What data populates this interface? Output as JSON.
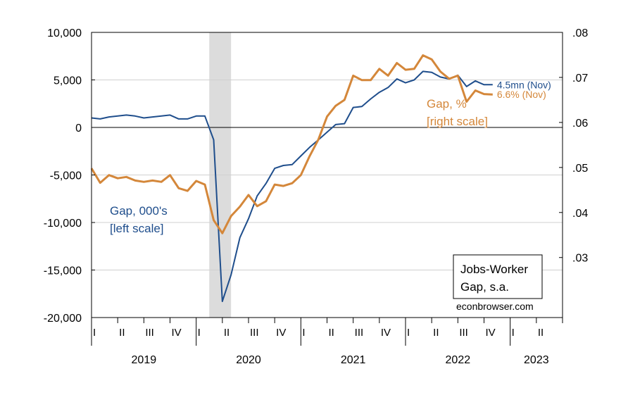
{
  "chart_data": {
    "type": "line",
    "title": "",
    "colors": {
      "gap_level": "#1f4e8c",
      "gap_pct": "#d4873a",
      "recession": "#dcdcdc",
      "grid": "#d0d0d0"
    },
    "left_axis": {
      "ylim": [
        -20000,
        10000
      ],
      "ticks": [
        10000,
        5000,
        0,
        -5000,
        -10000,
        -15000,
        -20000
      ],
      "tick_labels": [
        "10,000",
        "5,000",
        "0",
        "-5,000",
        "-10,000",
        "-15,000",
        "-20,000"
      ]
    },
    "right_axis": {
      "ylim": [
        0.016667,
        0.08
      ],
      "ticks": [
        0.08,
        0.07,
        0.06,
        0.05,
        0.04,
        0.03
      ],
      "tick_labels": [
        ".08",
        ".07",
        ".06",
        ".05",
        ".04",
        ".03"
      ]
    },
    "x_axis": {
      "start": 2019.0,
      "end": 2023.5,
      "quarter_labels": [
        "I",
        "II",
        "III",
        "IV",
        "I",
        "II",
        "III",
        "IV",
        "I",
        "II",
        "III",
        "IV",
        "I",
        "II",
        "III",
        "IV",
        "I",
        "II"
      ],
      "year_labels": [
        {
          "year": 2019.5,
          "label": "2019"
        },
        {
          "year": 2020.5,
          "label": "2020"
        },
        {
          "year": 2021.5,
          "label": "2021"
        },
        {
          "year": 2022.5,
          "label": "2022"
        },
        {
          "year": 2023.25,
          "label": "2023"
        }
      ]
    },
    "recession": {
      "start": 2020.125,
      "end": 2020.333
    },
    "series": [
      {
        "name": "Gap, 000's",
        "axis": "left",
        "x": [
          2019.0,
          2019.083,
          2019.167,
          2019.25,
          2019.333,
          2019.417,
          2019.5,
          2019.583,
          2019.667,
          2019.75,
          2019.833,
          2019.917,
          2020.0,
          2020.083,
          2020.167,
          2020.25,
          2020.333,
          2020.417,
          2020.5,
          2020.583,
          2020.667,
          2020.75,
          2020.833,
          2020.917,
          2021.0,
          2021.083,
          2021.167,
          2021.25,
          2021.333,
          2021.417,
          2021.5,
          2021.583,
          2021.667,
          2021.75,
          2021.833,
          2021.917,
          2022.0,
          2022.083,
          2022.167,
          2022.25,
          2022.333,
          2022.417,
          2022.5,
          2022.583,
          2022.667,
          2022.75,
          2022.833
        ],
        "values": [
          1000,
          900,
          1100,
          1200,
          1300,
          1200,
          1000,
          1100,
          1200,
          1300,
          900,
          900,
          1200,
          1200,
          -1300,
          -18300,
          -15500,
          -11600,
          -9600,
          -7200,
          -5900,
          -4300,
          -4000,
          -3900,
          -3000,
          -2100,
          -1300,
          -500,
          300,
          400,
          2100,
          2200,
          3000,
          3700,
          4200,
          5100,
          4700,
          5000,
          5900,
          5800,
          5300,
          5100,
          5500,
          4300,
          4900,
          4500,
          4500
        ]
      },
      {
        "name": "Gap, %",
        "axis": "right",
        "x": [
          2019.0,
          2019.083,
          2019.167,
          2019.25,
          2019.333,
          2019.417,
          2019.5,
          2019.583,
          2019.667,
          2019.75,
          2019.833,
          2019.917,
          2020.0,
          2020.083,
          2020.167,
          2020.25,
          2020.333,
          2020.417,
          2020.5,
          2020.583,
          2020.667,
          2020.75,
          2020.833,
          2020.917,
          2021.0,
          2021.083,
          2021.167,
          2021.25,
          2021.333,
          2021.417,
          2021.5,
          2021.583,
          2021.667,
          2021.75,
          2021.833,
          2021.917,
          2022.0,
          2022.083,
          2022.167,
          2022.25,
          2022.333,
          2022.417,
          2022.5,
          2022.583,
          2022.667,
          2022.75,
          2022.833
        ],
        "values": [
          0.0498,
          0.0466,
          0.0483,
          0.0476,
          0.0479,
          0.0471,
          0.0468,
          0.0471,
          0.0468,
          0.0483,
          0.0454,
          0.0448,
          0.047,
          0.0462,
          0.0383,
          0.0354,
          0.0392,
          0.0413,
          0.0439,
          0.0414,
          0.0425,
          0.0462,
          0.0459,
          0.0465,
          0.0483,
          0.0525,
          0.0562,
          0.0613,
          0.0637,
          0.065,
          0.0704,
          0.0694,
          0.0694,
          0.0719,
          0.0704,
          0.0732,
          0.0717,
          0.0719,
          0.0749,
          0.074,
          0.0713,
          0.0697,
          0.0704,
          0.0646,
          0.0671,
          0.0663,
          0.0662
        ]
      }
    ],
    "annotations": {
      "pct_end": "6.6% (Nov)",
      "level_end": "4.5mn (Nov)",
      "pct_label_line1": "Gap, %",
      "pct_label_line2": "[right scale]",
      "level_label_line1": "Gap, 000's",
      "level_label_line2": "[left scale]"
    },
    "legend": {
      "line1": "Jobs-Worker",
      "line2": "Gap, s.a.",
      "position": "bottom-right"
    },
    "credit": "econbrowser.com",
    "grid": true
  }
}
